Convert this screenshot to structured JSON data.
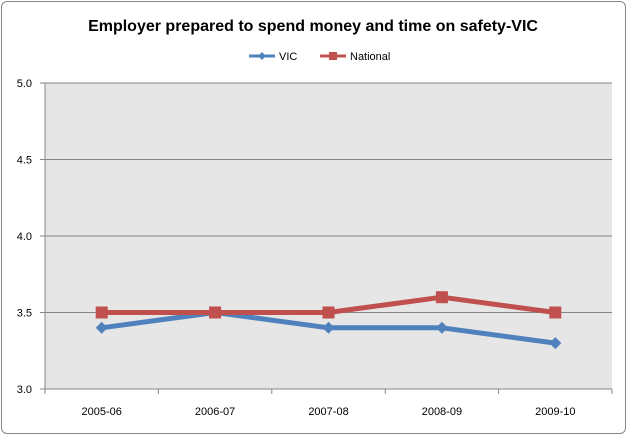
{
  "chart_data": {
    "type": "line",
    "title": "Employer prepared to spend money and time on safety-VIC",
    "xlabel": "",
    "ylabel": "",
    "categories": [
      "2005-06",
      "2006-07",
      "2007-08",
      "2008-09",
      "2009-10"
    ],
    "ylim": [
      3.0,
      5.0
    ],
    "yticks": [
      "3.0",
      "3.5",
      "4.0",
      "4.5",
      "5.0"
    ],
    "grid": true,
    "legend": "top-center",
    "series": [
      {
        "name": "VIC",
        "values": [
          3.4,
          3.5,
          3.4,
          3.4,
          3.3
        ],
        "color": "#4F81BD",
        "marker": "diamond"
      },
      {
        "name": "National",
        "values": [
          3.5,
          3.5,
          3.5,
          3.6,
          3.5
        ],
        "color": "#C0504D",
        "marker": "square"
      }
    ]
  }
}
